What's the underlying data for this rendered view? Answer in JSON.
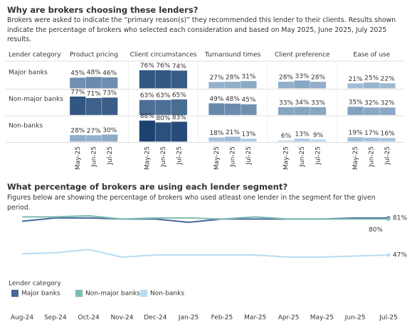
{
  "chart_data": [
    {
      "type": "cell-bars",
      "title": "Why are brokers choosing these lenders?",
      "subtitle": "Brokers were asked to indicate the “primary reason(s)” they recommended this lender to their clients. Results shown indicate the percentage of brokers who selected each consideration and based on May 2025, June 2025, July 2025 results.",
      "row_header": "Lender category",
      "columns": [
        "Product pricing",
        "Client circumstances",
        "Turnaround times",
        "Client preference",
        "Ease of use"
      ],
      "rows": [
        "Major banks",
        "Non-major banks",
        "Non-banks"
      ],
      "categories": [
        "May-25",
        "Jun-25",
        "Jul-25"
      ],
      "ylim": [
        0,
        100
      ],
      "color_low": "#c8e2f4",
      "color_high": "#183e6e",
      "cells": [
        [
          {
            "values": [
              45,
              48,
              46
            ],
            "value_labels": [
              "45%",
              "48%",
              "46%"
            ]
          },
          {
            "values": [
              76,
              76,
              74
            ],
            "value_labels": [
              "76%",
              "76%",
              "74%"
            ]
          },
          {
            "values": [
              27,
              28,
              31
            ],
            "value_labels": [
              "27%",
              "28%",
              "31%"
            ]
          },
          {
            "values": [
              28,
              33,
              28
            ],
            "value_labels": [
              "28%",
              "33%",
              "28%"
            ]
          },
          {
            "values": [
              21,
              25,
              22
            ],
            "value_labels": [
              "21%",
              "25%",
              "22%"
            ]
          }
        ],
        [
          {
            "values": [
              77,
              71,
              73
            ],
            "value_labels": [
              "77%",
              "71%",
              "73%"
            ]
          },
          {
            "values": [
              63,
              63,
              65
            ],
            "value_labels": [
              "63%",
              "63%",
              "65%"
            ]
          },
          {
            "values": [
              49,
              48,
              45
            ],
            "value_labels": [
              "49%",
              "48%",
              "45%"
            ]
          },
          {
            "values": [
              33,
              34,
              33
            ],
            "value_labels": [
              "33%",
              "34%",
              "33%"
            ]
          },
          {
            "values": [
              35,
              32,
              32
            ],
            "value_labels": [
              "35%",
              "32%",
              "32%"
            ]
          }
        ],
        [
          {
            "values": [
              28,
              27,
              30
            ],
            "value_labels": [
              "28%",
              "27%",
              "30%"
            ]
          },
          {
            "values": [
              88,
              80,
              83
            ],
            "value_labels": [
              "88%",
              "80%",
              "83%"
            ]
          },
          {
            "values": [
              18,
              21,
              13
            ],
            "value_labels": [
              "18%",
              "21%",
              "13%"
            ]
          },
          {
            "values": [
              6,
              13,
              9
            ],
            "value_labels": [
              "6%",
              "13%",
              "9%"
            ]
          },
          {
            "values": [
              19,
              17,
              16
            ],
            "value_labels": [
              "19%",
              "17%",
              "16%"
            ]
          }
        ]
      ]
    },
    {
      "type": "line",
      "title": "What percentage of brokers are using each lender segment?",
      "subtitle": "Figures below are showing the percentage of brokers who used atleast one lender in the segment for the given period.",
      "legend_title": "Lender category",
      "categories": [
        "Aug-24",
        "Sep-24",
        "Oct-24",
        "Nov-24",
        "Dec-24",
        "Jan-25",
        "Feb-25",
        "Mar-25",
        "Apr-25",
        "May-25",
        "Jun-25",
        "Jul-25"
      ],
      "ylim": [
        30,
        92
      ],
      "series": [
        {
          "name": "Major banks",
          "color": "#46699a",
          "values": [
            78,
            81,
            81,
            80,
            80,
            77,
            80,
            80,
            80,
            80,
            81,
            81
          ],
          "end_label": "81%"
        },
        {
          "name": "Non-major banks",
          "color": "#7dbdb3",
          "values": [
            82,
            82,
            83,
            80,
            81,
            81,
            80,
            82,
            80,
            80,
            80,
            80
          ],
          "end_label": "80%"
        },
        {
          "name": "Non-banks",
          "color": "#b8dbf0",
          "values": [
            48,
            49,
            52,
            45,
            47,
            47,
            47,
            47,
            45,
            45,
            46,
            47
          ],
          "end_label": "47%"
        }
      ]
    }
  ]
}
